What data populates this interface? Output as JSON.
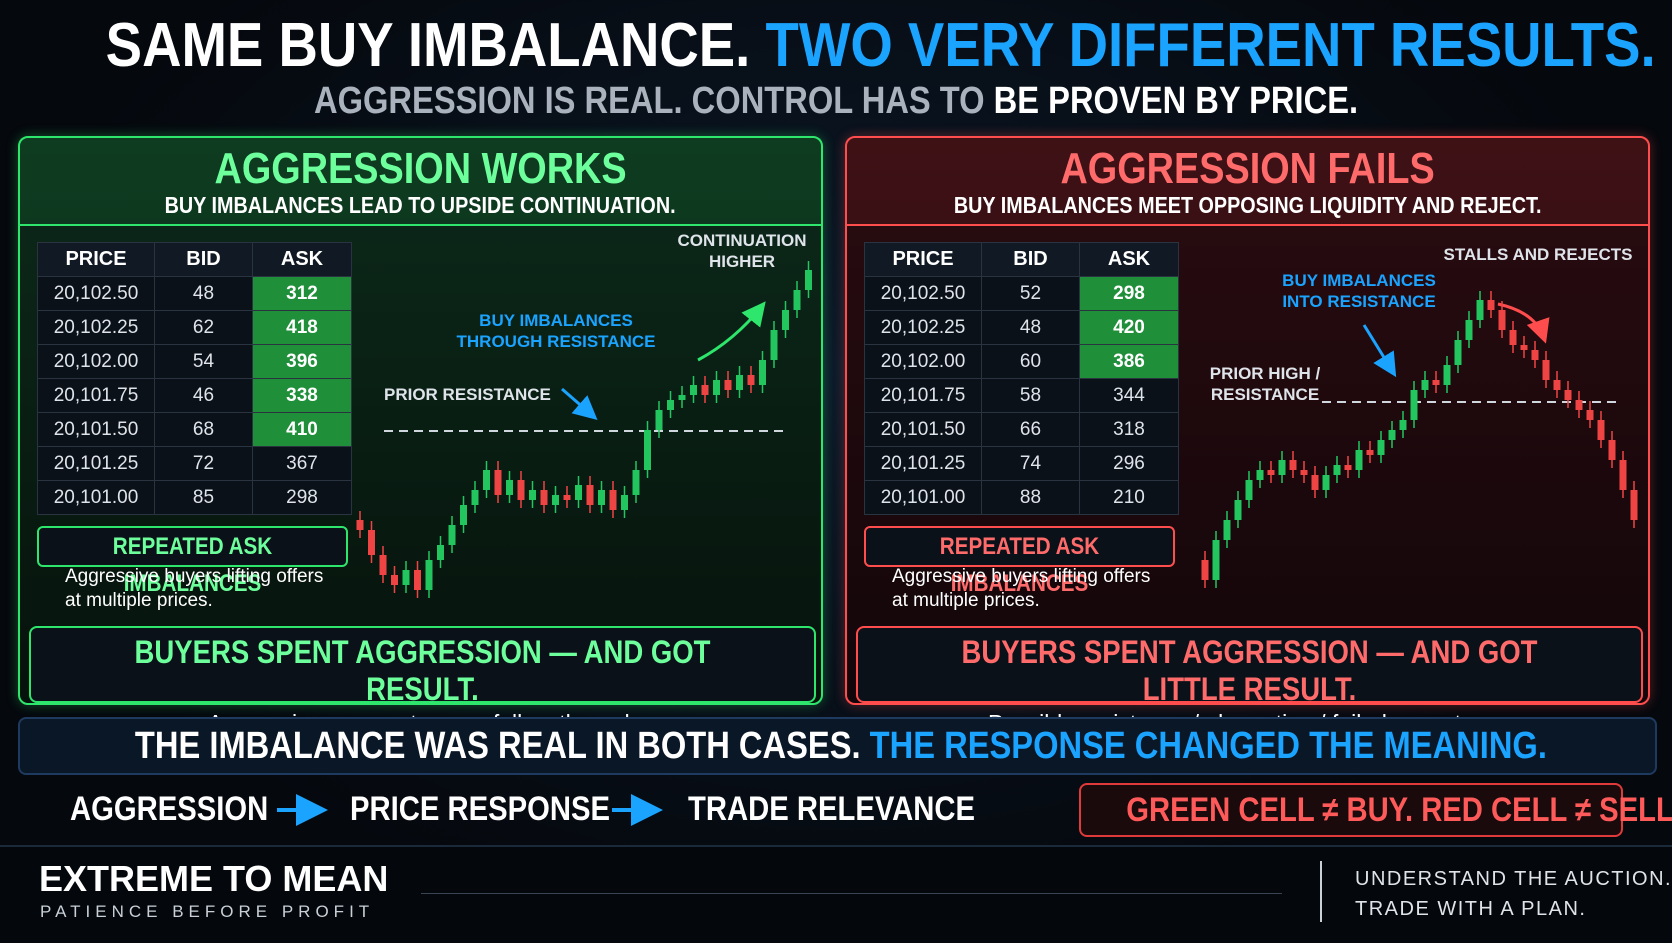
{
  "header": {
    "title": [
      "SAME BUY IMBALANCE.",
      "TWO VERY DIFFERENT RESULTS."
    ],
    "subtitle": [
      "AGGRESSION IS REAL. CONTROL HAS TO",
      "BE PROVEN BY PRICE."
    ]
  },
  "panels": [
    {
      "title": "AGGRESSION WORKS",
      "subtitle": "BUY IMBALANCES LEAD TO UPSIDE CONTINUATION.",
      "table": {
        "columns": [
          "PRICE",
          "BID",
          "ASK"
        ],
        "rows": [
          [
            "20,102.50",
            "48",
            "312"
          ],
          [
            "20,102.25",
            "62",
            "418"
          ],
          [
            "20,102.00",
            "54",
            "396"
          ],
          [
            "20,101.75",
            "46",
            "338"
          ],
          [
            "20,101.50",
            "68",
            "410"
          ],
          [
            "20,101.25",
            "72",
            "367"
          ],
          [
            "20,101.00",
            "85",
            "298"
          ]
        ]
      },
      "callout": {
        "label": "REPEATED ASK IMBALANCES",
        "text": [
          "Aggressive buyers lifting offers",
          "at multiple prices."
        ]
      },
      "annotations": [
        {
          "lines": [
            "CONTINUATION",
            "HIGHER"
          ]
        },
        {
          "lines": [
            "BUY IMBALANCES",
            "THROUGH RESISTANCE"
          ]
        },
        {
          "lines": [
            "PRIOR RESISTANCE"
          ]
        }
      ],
      "result": {
        "title": "BUYERS SPENT AGGRESSION — AND GOT RESULT.",
        "text": "Aggression + acceptance + follow-through"
      }
    },
    {
      "title": "AGGRESSION FAILS",
      "subtitle": "BUY IMBALANCES MEET OPPOSING LIQUIDITY AND REJECT.",
      "table": {
        "columns": [
          "PRICE",
          "BID",
          "ASK"
        ],
        "rows": [
          [
            "20,102.50",
            "52",
            "298"
          ],
          [
            "20,102.25",
            "48",
            "420"
          ],
          [
            "20,102.00",
            "60",
            "386"
          ],
          [
            "20,101.75",
            "58",
            "344"
          ],
          [
            "20,101.50",
            "66",
            "318"
          ],
          [
            "20,101.25",
            "74",
            "296"
          ],
          [
            "20,101.00",
            "88",
            "210"
          ]
        ]
      },
      "callout": {
        "label": "REPEATED ASK IMBALANCES",
        "text": [
          "Aggressive buyers lifting offers",
          "at multiple prices."
        ]
      },
      "annotations": [
        {
          "lines": [
            "STALLS AND REJECTS"
          ]
        },
        {
          "lines": [
            "BUY IMBALANCES",
            "INTO RESISTANCE"
          ]
        },
        {
          "lines": [
            "PRIOR HIGH /",
            "RESISTANCE"
          ]
        }
      ],
      "result": {
        "title": "BUYERS SPENT AGGRESSION — AND GOT LITTLE RESULT.",
        "text": "Possible resistance / absorption / failed acceptance"
      }
    }
  ],
  "banner": [
    "THE IMBALANCE WAS REAL IN BOTH CASES.",
    "THE RESPONSE CHANGED THE MEANING."
  ],
  "flow": [
    "AGGRESSION",
    "PRICE RESPONSE",
    "TRADE RELEVANCE"
  ],
  "warning": "GREEN CELL ≠ BUY. RED CELL ≠ SELL.",
  "footer": {
    "brand": "EXTREME TO MEAN",
    "tagline": "PATIENCE BEFORE PROFIT",
    "motto": [
      "UNDERSTAND THE AUCTION.",
      "TRADE WITH A PLAN."
    ]
  }
}
